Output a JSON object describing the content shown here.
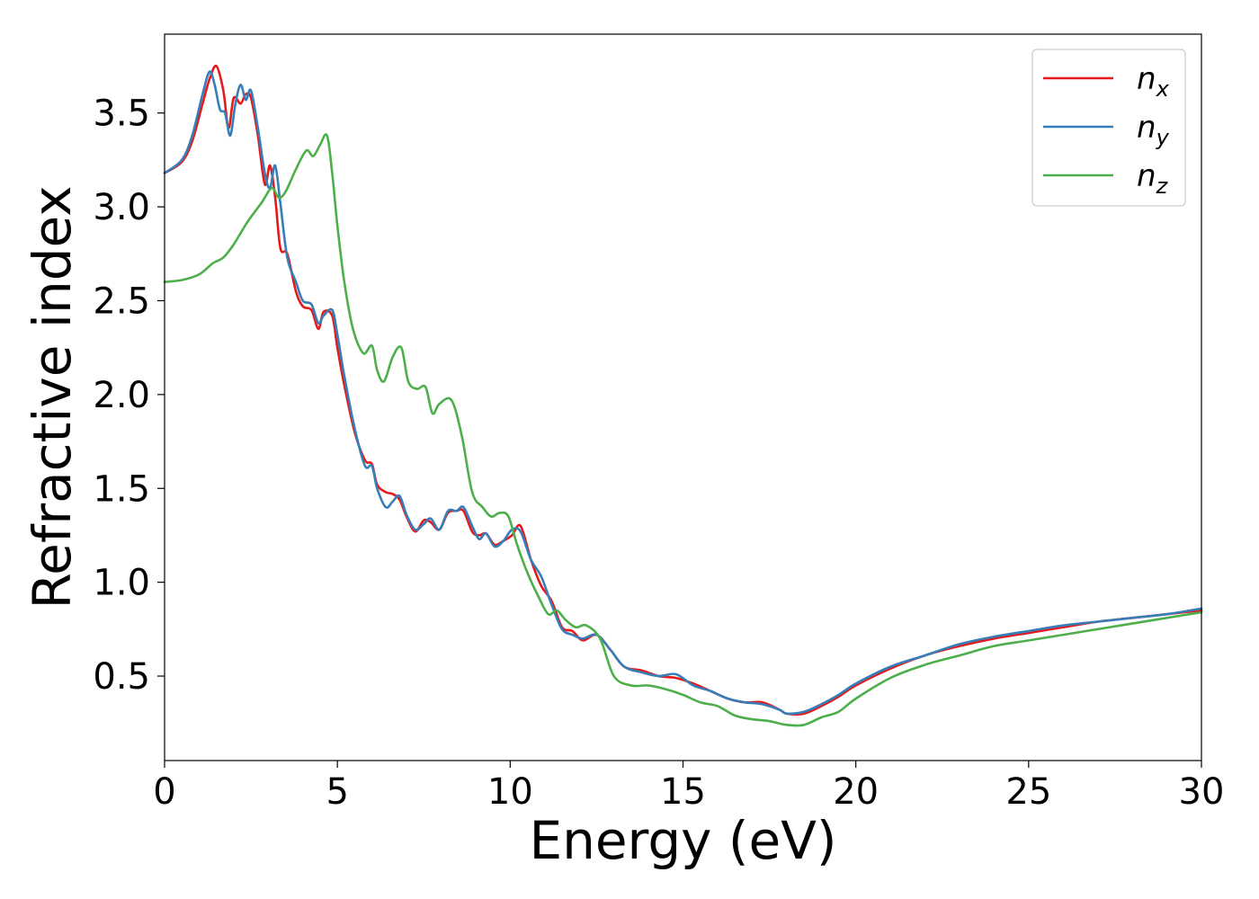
{
  "chart_data": {
    "type": "line",
    "title": "",
    "xlabel": "Energy (eV)",
    "ylabel": "Refractive index",
    "xlim": [
      0,
      30
    ],
    "ylim": [
      0.05,
      3.92
    ],
    "xticks": [
      0,
      5,
      10,
      15,
      20,
      25,
      30
    ],
    "xtick_labels": [
      "0",
      "5",
      "10",
      "15",
      "20",
      "25",
      "30"
    ],
    "yticks": [
      0.5,
      1.0,
      1.5,
      2.0,
      2.5,
      3.0,
      3.5
    ],
    "ytick_labels": [
      "0.5",
      "1.0",
      "1.5",
      "2.0",
      "2.5",
      "3.0",
      "3.5"
    ],
    "grid": false,
    "legend_position": "top-right",
    "series": [
      {
        "name": "n_x",
        "base": "n",
        "sub": "x",
        "color": "#e41a1c",
        "x": [
          0,
          0.5,
          0.8,
          1.1,
          1.3,
          1.5,
          1.7,
          1.85,
          2.0,
          2.2,
          2.35,
          2.5,
          2.7,
          2.9,
          3.05,
          3.2,
          3.35,
          3.55,
          3.8,
          4.0,
          4.25,
          4.45,
          4.6,
          4.85,
          5.0,
          5.2,
          5.5,
          5.8,
          6.0,
          6.15,
          6.4,
          6.6,
          6.8,
          7.0,
          7.25,
          7.5,
          7.7,
          7.95,
          8.2,
          8.45,
          8.65,
          8.9,
          9.1,
          9.3,
          9.55,
          9.8,
          10.05,
          10.3,
          10.6,
          10.9,
          11.2,
          11.5,
          11.8,
          12.1,
          12.5,
          12.9,
          13.3,
          13.8,
          14.3,
          14.8,
          15.3,
          15.8,
          16.3,
          16.8,
          17.3,
          17.8,
          18.0,
          18.5,
          19.0,
          19.5,
          20.0,
          21.0,
          22.0,
          23.0,
          24.0,
          25.0,
          26.0,
          27.0,
          28.0,
          29.0,
          30.0
        ],
        "y": [
          3.18,
          3.24,
          3.35,
          3.55,
          3.68,
          3.75,
          3.62,
          3.42,
          3.58,
          3.55,
          3.6,
          3.58,
          3.38,
          3.12,
          3.22,
          3.05,
          2.78,
          2.75,
          2.55,
          2.47,
          2.45,
          2.35,
          2.44,
          2.42,
          2.25,
          2.05,
          1.8,
          1.65,
          1.63,
          1.52,
          1.48,
          1.47,
          1.44,
          1.35,
          1.27,
          1.33,
          1.32,
          1.28,
          1.37,
          1.38,
          1.38,
          1.27,
          1.25,
          1.26,
          1.2,
          1.22,
          1.25,
          1.3,
          1.12,
          0.98,
          0.9,
          0.76,
          0.74,
          0.69,
          0.72,
          0.64,
          0.55,
          0.53,
          0.5,
          0.49,
          0.46,
          0.42,
          0.38,
          0.36,
          0.36,
          0.32,
          0.3,
          0.3,
          0.34,
          0.39,
          0.45,
          0.54,
          0.61,
          0.66,
          0.7,
          0.73,
          0.76,
          0.79,
          0.81,
          0.83,
          0.85
        ]
      },
      {
        "name": "n_y",
        "base": "n",
        "sub": "y",
        "color": "#377eb8",
        "x": [
          0,
          0.5,
          0.8,
          1.1,
          1.3,
          1.45,
          1.6,
          1.75,
          1.9,
          2.05,
          2.2,
          2.35,
          2.5,
          2.7,
          2.9,
          3.05,
          3.2,
          3.35,
          3.55,
          3.8,
          4.0,
          4.25,
          4.45,
          4.6,
          4.85,
          5.0,
          5.2,
          5.5,
          5.8,
          6.0,
          6.15,
          6.4,
          6.6,
          6.8,
          7.0,
          7.25,
          7.5,
          7.7,
          7.95,
          8.2,
          8.45,
          8.65,
          8.9,
          9.1,
          9.3,
          9.55,
          9.8,
          10.05,
          10.3,
          10.6,
          10.9,
          11.2,
          11.5,
          11.8,
          12.1,
          12.5,
          12.9,
          13.3,
          13.8,
          14.3,
          14.8,
          15.3,
          15.8,
          16.3,
          16.8,
          17.3,
          17.8,
          18.0,
          18.5,
          19.0,
          19.5,
          20.0,
          21.0,
          22.0,
          23.0,
          24.0,
          25.0,
          26.0,
          27.0,
          28.0,
          29.0,
          30.0
        ],
        "y": [
          3.18,
          3.25,
          3.38,
          3.6,
          3.72,
          3.65,
          3.52,
          3.5,
          3.38,
          3.55,
          3.65,
          3.57,
          3.62,
          3.42,
          3.18,
          3.1,
          3.22,
          3.02,
          2.73,
          2.6,
          2.5,
          2.48,
          2.38,
          2.42,
          2.45,
          2.32,
          2.1,
          1.82,
          1.62,
          1.62,
          1.5,
          1.4,
          1.43,
          1.46,
          1.36,
          1.28,
          1.31,
          1.34,
          1.28,
          1.38,
          1.38,
          1.4,
          1.3,
          1.23,
          1.26,
          1.19,
          1.22,
          1.28,
          1.27,
          1.12,
          1.03,
          0.88,
          0.75,
          0.72,
          0.7,
          0.72,
          0.64,
          0.55,
          0.52,
          0.5,
          0.51,
          0.45,
          0.42,
          0.38,
          0.36,
          0.35,
          0.32,
          0.3,
          0.31,
          0.35,
          0.4,
          0.46,
          0.55,
          0.61,
          0.67,
          0.71,
          0.74,
          0.77,
          0.79,
          0.81,
          0.83,
          0.86
        ]
      },
      {
        "name": "n_z",
        "base": "n",
        "sub": "z",
        "color": "#4daf4a",
        "x": [
          0,
          0.5,
          1.0,
          1.4,
          1.7,
          2.0,
          2.4,
          2.8,
          3.1,
          3.3,
          3.5,
          3.8,
          4.1,
          4.3,
          4.5,
          4.7,
          4.85,
          5.0,
          5.2,
          5.45,
          5.75,
          6.0,
          6.15,
          6.35,
          6.6,
          6.85,
          7.05,
          7.3,
          7.55,
          7.75,
          7.95,
          8.3,
          8.6,
          8.9,
          9.2,
          9.45,
          9.7,
          9.95,
          10.2,
          10.5,
          10.8,
          11.1,
          11.35,
          11.6,
          11.9,
          12.2,
          12.6,
          13.0,
          13.5,
          14.0,
          14.5,
          15.0,
          15.5,
          16.0,
          16.5,
          17.0,
          17.5,
          18.0,
          18.5,
          19.0,
          19.5,
          20.0,
          21.0,
          22.0,
          23.0,
          24.0,
          25.0,
          26.0,
          27.0,
          28.0,
          29.0,
          30.0
        ],
        "y": [
          2.6,
          2.61,
          2.64,
          2.7,
          2.73,
          2.8,
          2.92,
          3.02,
          3.1,
          3.05,
          3.08,
          3.2,
          3.3,
          3.27,
          3.33,
          3.38,
          3.18,
          2.9,
          2.6,
          2.35,
          2.22,
          2.26,
          2.13,
          2.07,
          2.2,
          2.25,
          2.07,
          2.03,
          2.04,
          1.9,
          1.95,
          1.97,
          1.78,
          1.48,
          1.4,
          1.35,
          1.37,
          1.35,
          1.2,
          1.05,
          0.93,
          0.83,
          0.85,
          0.8,
          0.76,
          0.77,
          0.7,
          0.5,
          0.45,
          0.45,
          0.43,
          0.4,
          0.36,
          0.34,
          0.29,
          0.27,
          0.26,
          0.24,
          0.24,
          0.28,
          0.31,
          0.38,
          0.49,
          0.56,
          0.61,
          0.66,
          0.69,
          0.72,
          0.75,
          0.78,
          0.81,
          0.84
        ]
      }
    ]
  }
}
